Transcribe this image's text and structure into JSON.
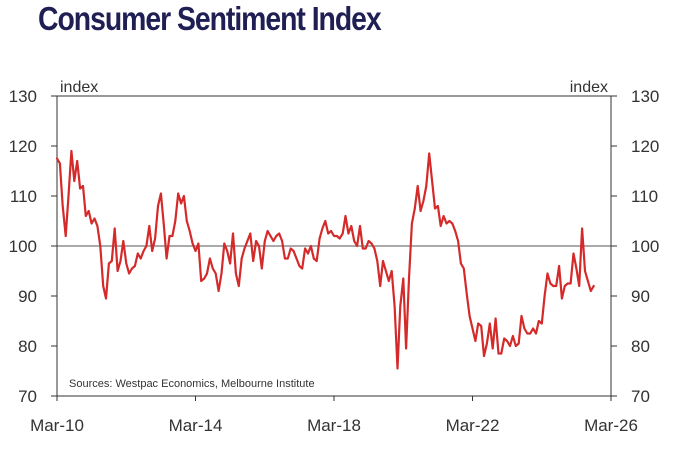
{
  "chart_data": {
    "type": "line",
    "title": "Consumer Sentiment Index",
    "y_unit_left": "index",
    "y_unit_right": "index",
    "source": "Sources: Westpac Economics, Melbourne Institute",
    "ylim": [
      70,
      130
    ],
    "yticks": [
      70,
      80,
      90,
      100,
      110,
      120,
      130
    ],
    "xlim": [
      2010.167,
      2026.167
    ],
    "xticks": [
      {
        "label": "Mar-10",
        "value": 2010.167
      },
      {
        "label": "Mar-14",
        "value": 2014.167
      },
      {
        "label": "Mar-18",
        "value": 2018.167
      },
      {
        "label": "Mar-22",
        "value": 2022.167
      },
      {
        "label": "Mar-26",
        "value": 2026.167
      }
    ],
    "reference_line": 100,
    "grid": false,
    "colors": {
      "series": "#d42a2a",
      "axis": "#333333",
      "title": "#1f1f54",
      "reference": "#555555"
    },
    "series": [
      {
        "values": [
          [
            2010.167,
            117.5
          ],
          [
            2010.25,
            116.5
          ],
          [
            2010.333,
            108.0
          ],
          [
            2010.417,
            102.0
          ],
          [
            2010.5,
            110.0
          ],
          [
            2010.583,
            119.0
          ],
          [
            2010.667,
            113.0
          ],
          [
            2010.75,
            117.0
          ],
          [
            2010.833,
            111.5
          ],
          [
            2010.917,
            112.0
          ],
          [
            2011.0,
            106.0
          ],
          [
            2011.083,
            107.0
          ],
          [
            2011.167,
            104.5
          ],
          [
            2011.25,
            105.5
          ],
          [
            2011.333,
            104.0
          ],
          [
            2011.417,
            100.0
          ],
          [
            2011.5,
            92.0
          ],
          [
            2011.583,
            89.5
          ],
          [
            2011.667,
            96.5
          ],
          [
            2011.75,
            97.0
          ],
          [
            2011.833,
            103.5
          ],
          [
            2011.917,
            95.0
          ],
          [
            2012.0,
            97.0
          ],
          [
            2012.083,
            101.0
          ],
          [
            2012.167,
            96.5
          ],
          [
            2012.25,
            94.5
          ],
          [
            2012.333,
            95.5
          ],
          [
            2012.417,
            96.0
          ],
          [
            2012.5,
            98.5
          ],
          [
            2012.583,
            97.5
          ],
          [
            2012.667,
            99.0
          ],
          [
            2012.75,
            100.0
          ],
          [
            2012.833,
            104.0
          ],
          [
            2012.917,
            99.0
          ],
          [
            2013.0,
            101.5
          ],
          [
            2013.083,
            108.0
          ],
          [
            2013.167,
            110.5
          ],
          [
            2013.25,
            104.5
          ],
          [
            2013.333,
            97.5
          ],
          [
            2013.417,
            102.0
          ],
          [
            2013.5,
            102.0
          ],
          [
            2013.583,
            105.0
          ],
          [
            2013.667,
            110.5
          ],
          [
            2013.75,
            108.5
          ],
          [
            2013.833,
            110.0
          ],
          [
            2013.917,
            105.0
          ],
          [
            2014.0,
            103.0
          ],
          [
            2014.083,
            100.5
          ],
          [
            2014.167,
            99.0
          ],
          [
            2014.25,
            100.5
          ],
          [
            2014.333,
            93.0
          ],
          [
            2014.417,
            93.5
          ],
          [
            2014.5,
            94.5
          ],
          [
            2014.583,
            97.5
          ],
          [
            2014.667,
            95.5
          ],
          [
            2014.75,
            94.5
          ],
          [
            2014.833,
            91.0
          ],
          [
            2014.917,
            94.5
          ],
          [
            2015.0,
            100.5
          ],
          [
            2015.083,
            99.0
          ],
          [
            2015.167,
            96.5
          ],
          [
            2015.25,
            102.5
          ],
          [
            2015.333,
            94.5
          ],
          [
            2015.417,
            92.0
          ],
          [
            2015.5,
            97.5
          ],
          [
            2015.583,
            99.5
          ],
          [
            2015.667,
            101.0
          ],
          [
            2015.75,
            102.5
          ],
          [
            2015.833,
            97.0
          ],
          [
            2015.917,
            101.0
          ],
          [
            2016.0,
            100.0
          ],
          [
            2016.083,
            95.5
          ],
          [
            2016.167,
            101.0
          ],
          [
            2016.25,
            103.0
          ],
          [
            2016.333,
            102.0
          ],
          [
            2016.417,
            101.0
          ],
          [
            2016.5,
            102.0
          ],
          [
            2016.583,
            102.5
          ],
          [
            2016.667,
            101.0
          ],
          [
            2016.75,
            97.5
          ],
          [
            2016.833,
            97.5
          ],
          [
            2016.917,
            99.5
          ],
          [
            2017.0,
            99.0
          ],
          [
            2017.083,
            97.5
          ],
          [
            2017.167,
            96.0
          ],
          [
            2017.25,
            95.5
          ],
          [
            2017.333,
            99.5
          ],
          [
            2017.417,
            98.5
          ],
          [
            2017.5,
            100.0
          ],
          [
            2017.583,
            97.5
          ],
          [
            2017.667,
            97.0
          ],
          [
            2017.75,
            101.5
          ],
          [
            2017.833,
            103.5
          ],
          [
            2017.917,
            105.0
          ],
          [
            2018.0,
            102.5
          ],
          [
            2018.083,
            103.0
          ],
          [
            2018.167,
            102.0
          ],
          [
            2018.25,
            102.0
          ],
          [
            2018.333,
            101.5
          ],
          [
            2018.417,
            102.5
          ],
          [
            2018.5,
            106.0
          ],
          [
            2018.583,
            102.5
          ],
          [
            2018.667,
            104.0
          ],
          [
            2018.75,
            101.0
          ],
          [
            2018.833,
            100.0
          ],
          [
            2018.917,
            104.0
          ],
          [
            2019.0,
            99.5
          ],
          [
            2019.083,
            99.5
          ],
          [
            2019.167,
            101.0
          ],
          [
            2019.25,
            100.5
          ],
          [
            2019.333,
            99.5
          ],
          [
            2019.417,
            97.0
          ],
          [
            2019.5,
            92.0
          ],
          [
            2019.583,
            97.0
          ],
          [
            2019.667,
            95.0
          ],
          [
            2019.75,
            93.0
          ],
          [
            2019.833,
            95.0
          ],
          [
            2019.917,
            88.0
          ],
          [
            2020.0,
            75.5
          ],
          [
            2020.083,
            88.0
          ],
          [
            2020.167,
            93.5
          ],
          [
            2020.25,
            79.5
          ],
          [
            2020.333,
            93.5
          ],
          [
            2020.417,
            104.5
          ],
          [
            2020.5,
            107.5
          ],
          [
            2020.583,
            112.0
          ],
          [
            2020.667,
            107.0
          ],
          [
            2020.75,
            109.0
          ],
          [
            2020.833,
            112.0
          ],
          [
            2020.917,
            118.5
          ],
          [
            2021.0,
            113.0
          ],
          [
            2021.083,
            107.5
          ],
          [
            2021.167,
            108.0
          ],
          [
            2021.25,
            104.0
          ],
          [
            2021.333,
            106.0
          ],
          [
            2021.417,
            104.5
          ],
          [
            2021.5,
            105.0
          ],
          [
            2021.583,
            104.5
          ],
          [
            2021.667,
            103.0
          ],
          [
            2021.75,
            101.0
          ],
          [
            2021.833,
            96.5
          ],
          [
            2021.917,
            95.5
          ],
          [
            2022.0,
            90.5
          ],
          [
            2022.083,
            86.0
          ],
          [
            2022.167,
            83.5
          ],
          [
            2022.25,
            81.0
          ],
          [
            2022.333,
            84.5
          ],
          [
            2022.417,
            84.0
          ],
          [
            2022.5,
            78.0
          ],
          [
            2022.583,
            80.5
          ],
          [
            2022.667,
            84.5
          ],
          [
            2022.75,
            79.5
          ],
          [
            2022.833,
            85.5
          ],
          [
            2022.917,
            78.5
          ],
          [
            2023.0,
            78.5
          ],
          [
            2023.083,
            81.5
          ],
          [
            2023.167,
            81.0
          ],
          [
            2023.25,
            80.0
          ],
          [
            2023.333,
            82.0
          ],
          [
            2023.417,
            80.0
          ],
          [
            2023.5,
            80.5
          ],
          [
            2023.583,
            86.0
          ],
          [
            2023.667,
            83.5
          ],
          [
            2023.75,
            82.5
          ],
          [
            2023.833,
            82.5
          ],
          [
            2023.917,
            83.5
          ],
          [
            2024.0,
            82.5
          ],
          [
            2024.083,
            85.0
          ],
          [
            2024.167,
            84.5
          ],
          [
            2024.25,
            90.0
          ],
          [
            2024.333,
            94.5
          ],
          [
            2024.417,
            92.5
          ],
          [
            2024.5,
            92.0
          ],
          [
            2024.583,
            92.0
          ],
          [
            2024.667,
            96.0
          ],
          [
            2024.75,
            89.5
          ],
          [
            2024.833,
            92.0
          ],
          [
            2024.917,
            92.5
          ],
          [
            2025.0,
            92.5
          ],
          [
            2025.083,
            98.5
          ],
          [
            2025.167,
            95.5
          ],
          [
            2025.25,
            92.0
          ],
          [
            2025.333,
            103.5
          ],
          [
            2025.417,
            95.0
          ],
          [
            2025.5,
            93.0
          ],
          [
            2025.583,
            91.0
          ],
          [
            2025.667,
            92.0
          ]
        ]
      }
    ]
  }
}
